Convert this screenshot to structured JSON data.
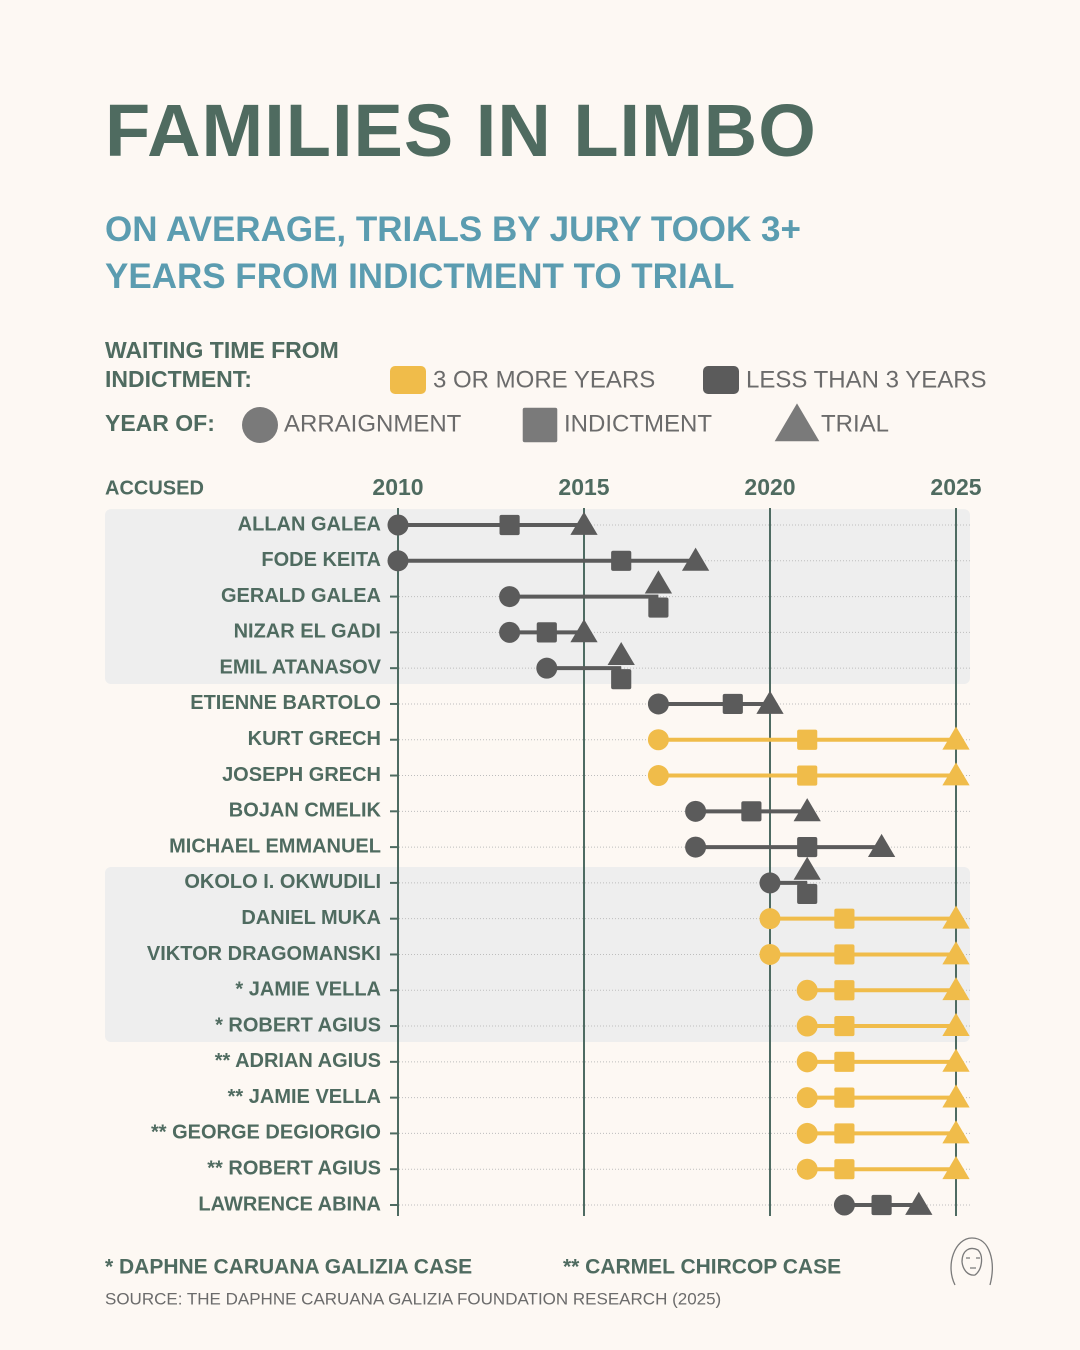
{
  "chart_data": {
    "type": "dumbbell",
    "title": "FAMILIES IN LIMBO",
    "subtitle": "ON AVERAGE, TRIALS BY JURY TOOK 3+ YEARS FROM INDICTMENT TO TRIAL",
    "group_legend_title": "WAITING TIME FROM INDICTMENT:",
    "groups": [
      {
        "name": "3 OR MORE YEARS",
        "color": "#f0bc4a"
      },
      {
        "name": "LESS THAN 3 YEARS",
        "color": "#5b5b5b"
      }
    ],
    "symbol_legend_title": "YEAR OF:",
    "symbol_legend_color": "#7a7a7a",
    "symbols": [
      {
        "name": "ARRAIGNMENT",
        "shape": "circle"
      },
      {
        "name": "INDICTMENT",
        "shape": "square"
      },
      {
        "name": "TRIAL",
        "shape": "triangle"
      }
    ],
    "row_axis_label": "ACCUSED",
    "xlim": [
      2010,
      2025
    ],
    "xticks": [
      2010,
      2015,
      2020,
      2025
    ],
    "grid": true,
    "grid_color": "#4e6b62",
    "rows": [
      {
        "name": "ALLAN GALEA",
        "group": "LESS THAN 3 YEARS",
        "values": [
          2010,
          2013,
          2015
        ]
      },
      {
        "name": "FODE KEITA",
        "group": "LESS THAN 3 YEARS",
        "values": [
          2010,
          2016,
          2018
        ]
      },
      {
        "name": "GERALD GALEA",
        "group": "LESS THAN 3 YEARS",
        "values": [
          2013,
          2017,
          2017
        ]
      },
      {
        "name": "NIZAR EL GADI",
        "group": "LESS THAN 3 YEARS",
        "values": [
          2013,
          2014,
          2015
        ]
      },
      {
        "name": "EMIL ATANASOV",
        "group": "LESS THAN 3 YEARS",
        "values": [
          2014,
          2016,
          2016
        ]
      },
      {
        "name": "ETIENNE BARTOLO",
        "group": "LESS THAN 3 YEARS",
        "values": [
          2017,
          2019,
          2020
        ]
      },
      {
        "name": "KURT GRECH",
        "group": "3 OR MORE YEARS",
        "values": [
          2017,
          2021,
          2025
        ]
      },
      {
        "name": "JOSEPH GRECH",
        "group": "3 OR MORE YEARS",
        "values": [
          2017,
          2021,
          2025
        ]
      },
      {
        "name": "BOJAN CMELIK",
        "group": "LESS THAN 3 YEARS",
        "values": [
          2018,
          2019.5,
          2021
        ]
      },
      {
        "name": "MICHAEL EMMANUEL",
        "group": "LESS THAN 3 YEARS",
        "values": [
          2018,
          2021,
          2023
        ]
      },
      {
        "name": "OKOLO I. OKWUDILI",
        "group": "LESS THAN 3 YEARS",
        "values": [
          2020,
          2021,
          2021
        ]
      },
      {
        "name": "DANIEL MUKA",
        "group": "3 OR MORE YEARS",
        "values": [
          2020,
          2022,
          2025
        ]
      },
      {
        "name": "VIKTOR DRAGOMANSKI",
        "group": "3 OR MORE YEARS",
        "values": [
          2020,
          2022,
          2025
        ]
      },
      {
        "name": "* JAMIE VELLA",
        "group": "3 OR MORE YEARS",
        "values": [
          2021,
          2022,
          2025
        ]
      },
      {
        "name": "* ROBERT AGIUS",
        "group": "3 OR MORE YEARS",
        "values": [
          2021,
          2022,
          2025
        ]
      },
      {
        "name": "** ADRIAN AGIUS",
        "group": "3 OR MORE YEARS",
        "values": [
          2021,
          2022,
          2025
        ]
      },
      {
        "name": "** JAMIE VELLA",
        "group": "3 OR MORE YEARS",
        "values": [
          2021,
          2022,
          2025
        ]
      },
      {
        "name": "** GEORGE DEGIORGIO",
        "group": "3 OR MORE YEARS",
        "values": [
          2021,
          2022,
          2025
        ]
      },
      {
        "name": "** ROBERT AGIUS",
        "group": "3 OR MORE YEARS",
        "values": [
          2021,
          2022,
          2025
        ]
      },
      {
        "name": "LAWRENCE ABINA",
        "group": "LESS THAN 3 YEARS",
        "values": [
          2022,
          2023,
          2024
        ]
      }
    ],
    "footnotes": [
      "* DAPHNE CARUANA GALIZIA CASE",
      "** CARMEL CHIRCOP CASE"
    ],
    "source": "SOURCE: THE DAPHNE CARUANA GALIZIA FOUNDATION RESEARCH (2025)"
  }
}
